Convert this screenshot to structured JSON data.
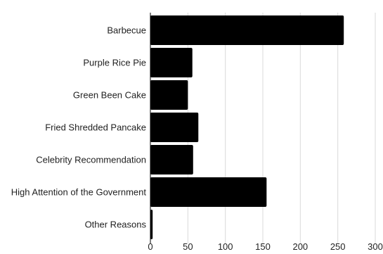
{
  "chart_data": {
    "type": "bar",
    "orientation": "horizontal",
    "categories": [
      "Barbecue",
      "Purple Rice Pie",
      "Green Been Cake",
      "Fried Shredded Pancake",
      "Celebrity Recommendation",
      "High Attention of the Government",
      "Other Reasons"
    ],
    "values": [
      258,
      56,
      50,
      64,
      57,
      155,
      3
    ],
    "title": "",
    "xlabel": "",
    "ylabel": "",
    "xlim": [
      0,
      300
    ],
    "xticks": [
      0,
      50,
      100,
      150,
      200,
      250,
      300
    ],
    "grid": "vertical",
    "legend": "none",
    "bar_color": "#000000",
    "grid_color": "#d9d9d9"
  }
}
